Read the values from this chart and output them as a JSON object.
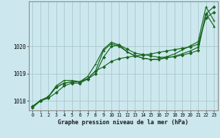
{
  "title": "Graphe pression niveau de la mer (hPa)",
  "background_color": "#cce8ee",
  "grid_color": "#aacccc",
  "line_color": "#1a6620",
  "xlim": [
    -0.5,
    23.5
  ],
  "ylim": [
    1017.65,
    1021.65
  ],
  "yticks": [
    1018,
    1019,
    1020
  ],
  "xticks": [
    0,
    1,
    2,
    3,
    4,
    5,
    6,
    7,
    8,
    9,
    10,
    11,
    12,
    13,
    14,
    15,
    16,
    17,
    18,
    19,
    20,
    21,
    22,
    23
  ],
  "series": [
    [
      1017.75,
      1018.0,
      1018.1,
      1018.3,
      1018.55,
      1018.65,
      1018.65,
      1018.8,
      1019.0,
      1019.6,
      1020.0,
      1020.05,
      1019.9,
      1019.75,
      1019.7,
      1019.65,
      1019.6,
      1019.6,
      1019.62,
      1019.68,
      1019.75,
      1019.85,
      1021.2,
      1021.45
    ],
    [
      1017.8,
      1018.0,
      1018.15,
      1018.5,
      1018.65,
      1018.7,
      1018.7,
      1018.82,
      1019.1,
      1019.25,
      1019.45,
      1019.55,
      1019.6,
      1019.65,
      1019.68,
      1019.72,
      1019.78,
      1019.83,
      1019.88,
      1019.93,
      1019.98,
      1020.08,
      1021.05,
      1021.25
    ],
    [
      1017.8,
      1018.0,
      1018.15,
      1018.5,
      1018.65,
      1018.7,
      1018.7,
      1018.82,
      1019.1,
      1019.85,
      1020.1,
      1020.0,
      1019.8,
      1019.65,
      1019.57,
      1019.52,
      1019.52,
      1019.58,
      1019.63,
      1019.73,
      1019.83,
      1019.97,
      1021.2,
      1020.75
    ],
    [
      1017.8,
      1018.02,
      1018.15,
      1018.55,
      1018.75,
      1018.75,
      1018.7,
      1018.9,
      1019.35,
      1019.9,
      1020.15,
      1020.05,
      1019.8,
      1019.65,
      1019.57,
      1019.52,
      1019.52,
      1019.62,
      1019.72,
      1019.87,
      1020.02,
      1020.17,
      1021.45,
      1020.95
    ]
  ]
}
